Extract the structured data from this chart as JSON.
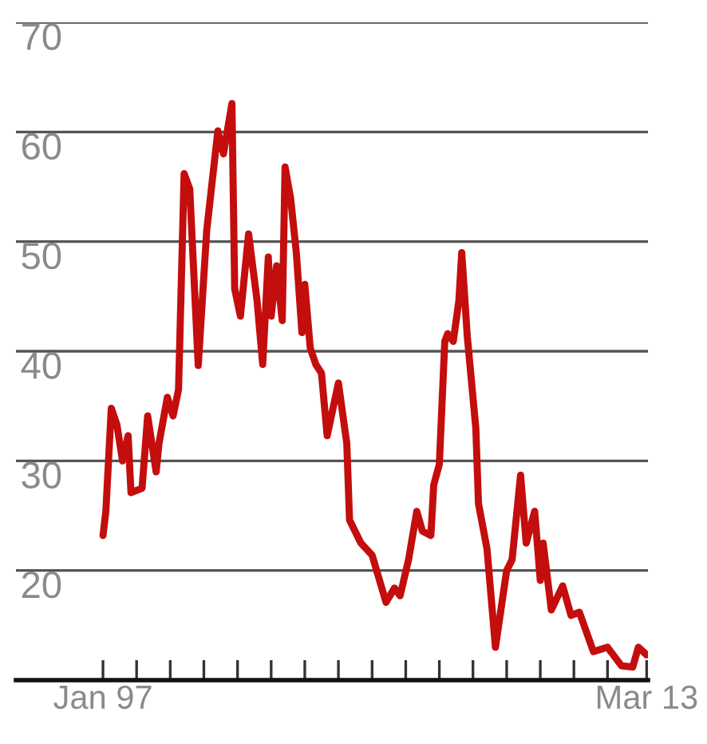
{
  "chart_data": {
    "type": "line",
    "x": [
      "1997-01",
      "1997-02",
      "1997-04",
      "1997-06",
      "1997-08",
      "1997-10",
      "1997-11",
      "1998-03",
      "1998-05",
      "1998-08",
      "1998-09",
      "1998-12",
      "1999-02",
      "1999-04",
      "1999-06",
      "1999-08",
      "1999-11",
      "2000-02",
      "2000-06",
      "2000-08",
      "2000-11",
      "2000-12",
      "2001-02",
      "2001-05",
      "2001-08",
      "2001-10",
      "2001-12",
      "2002-01",
      "2002-03",
      "2002-05",
      "2002-06",
      "2002-08",
      "2002-10",
      "2002-12",
      "2003-01",
      "2003-03",
      "2003-05",
      "2003-07",
      "2003-09",
      "2004-01",
      "2004-04",
      "2004-05",
      "2004-09",
      "2005-01",
      "2005-06",
      "2005-09",
      "2005-11",
      "2006-02",
      "2006-05",
      "2006-07",
      "2006-10",
      "2006-11",
      "2007-01",
      "2007-03",
      "2007-04",
      "2007-06",
      "2007-08",
      "2007-09",
      "2007-11",
      "2008-02",
      "2008-03",
      "2008-06",
      "2008-09",
      "2009-01",
      "2009-03",
      "2009-06",
      "2009-08",
      "2009-11",
      "2010-01",
      "2010-02",
      "2010-05",
      "2010-09",
      "2010-12",
      "2011-03",
      "2011-08",
      "2012-01",
      "2012-06",
      "2012-10",
      "2012-12",
      "2013-03"
    ],
    "series": [
      {
        "color": "#c40d0d",
        "values": [
          23.2,
          25.4,
          34.8,
          33.3,
          30.0,
          32.3,
          27.1,
          27.5,
          34.1,
          29.0,
          31.6,
          35.8,
          34.1,
          36.5,
          56.2,
          54.8,
          38.7,
          51.0,
          60.1,
          58.0,
          62.6,
          45.7,
          43.2,
          50.7,
          44.6,
          38.8,
          48.6,
          43.2,
          47.8,
          42.8,
          56.8,
          53.9,
          49.0,
          41.7,
          46.1,
          40.3,
          38.8,
          38.0,
          32.3,
          37.1,
          31.6,
          24.6,
          22.5,
          21.4,
          17.1,
          18.4,
          17.7,
          21.0,
          25.4,
          23.6,
          23.2,
          27.8,
          29.7,
          40.9,
          41.6,
          40.9,
          44.6,
          49.0,
          41.3,
          33.0,
          26.1,
          22.0,
          13.0,
          20.0,
          21.0,
          28.7,
          22.5,
          25.4,
          19.1,
          22.5,
          16.4,
          18.6,
          15.9,
          16.2,
          12.6,
          13.0,
          11.3,
          11.2,
          13.0,
          12.3
        ]
      }
    ],
    "xlim": [
      "1994-06-01",
      "2013-03-15"
    ],
    "xticks": [
      {
        "value": "1997-01-01",
        "label": "Jan 97"
      },
      {
        "value": "1998-01-01",
        "label": null
      },
      {
        "value": "1999-01-01",
        "label": null
      },
      {
        "value": "2000-01-01",
        "label": null
      },
      {
        "value": "2001-01-01",
        "label": null
      },
      {
        "value": "2002-01-01",
        "label": null
      },
      {
        "value": "2003-01-01",
        "label": null
      },
      {
        "value": "2004-01-01",
        "label": null
      },
      {
        "value": "2005-01-01",
        "label": null
      },
      {
        "value": "2006-01-01",
        "label": null
      },
      {
        "value": "2007-01-01",
        "label": null
      },
      {
        "value": "2008-01-01",
        "label": null
      },
      {
        "value": "2009-01-01",
        "label": null
      },
      {
        "value": "2010-01-01",
        "label": null
      },
      {
        "value": "2011-01-01",
        "label": null
      },
      {
        "value": "2012-01-01",
        "label": null
      },
      {
        "value": "2013-03-01",
        "label": "Mar 13"
      }
    ],
    "ylim": [
      10,
      70
    ],
    "yticks": [
      20,
      30,
      40,
      50,
      60,
      70
    ],
    "grid": "y",
    "legend": false,
    "marker": "none",
    "line_style": "solid"
  }
}
